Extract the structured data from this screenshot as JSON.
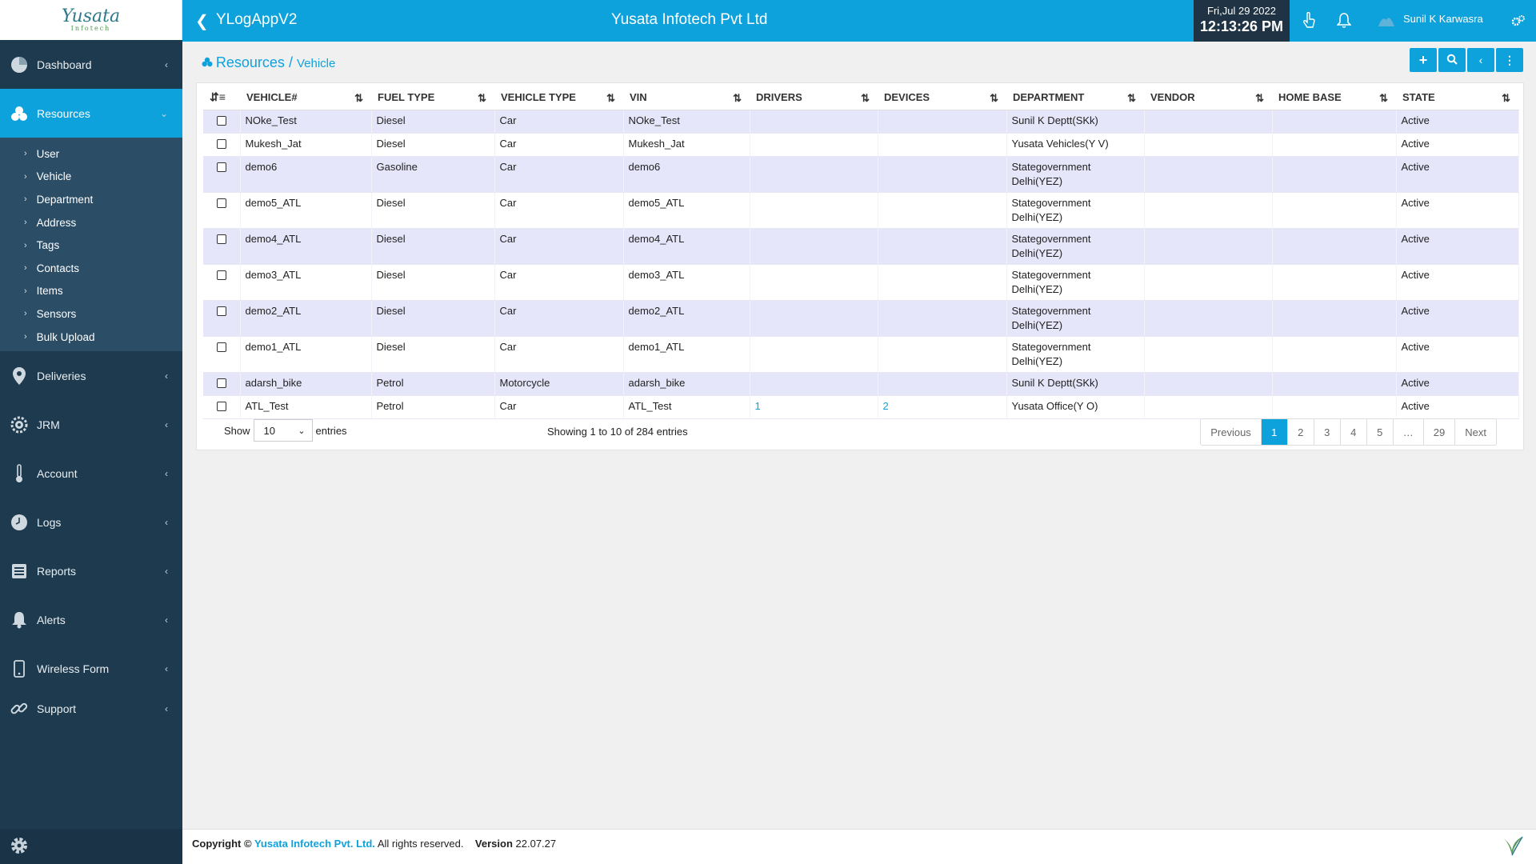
{
  "logo": {
    "text": "Yusata",
    "sub": "Infotech"
  },
  "header": {
    "app_title": "YLogAppV2",
    "company": "Yusata Infotech Pvt Ltd",
    "date": "Fri,Jul 29 2022",
    "time": "12:13:26 PM",
    "user": "Sunil K Karwasra"
  },
  "sidebar": {
    "items": [
      {
        "label": "Dashboard",
        "icon": "dashboard-icon"
      },
      {
        "label": "Resources",
        "icon": "resources-icon",
        "active": true
      },
      {
        "label": "Deliveries",
        "icon": "location-pin-icon"
      },
      {
        "label": "JRM",
        "icon": "gear-cog-icon"
      },
      {
        "label": "Account",
        "icon": "thermometer-icon"
      },
      {
        "label": "Logs",
        "icon": "clock-icon"
      },
      {
        "label": "Reports",
        "icon": "report-icon"
      },
      {
        "label": "Alerts",
        "icon": "bell-icon"
      },
      {
        "label": "Wireless Form",
        "icon": "mobile-icon"
      },
      {
        "label": "Support",
        "icon": "link-icon"
      }
    ],
    "submenu": [
      "User",
      "Vehicle",
      "Department",
      "Address",
      "Tags",
      "Contacts",
      "Items",
      "Sensors",
      "Bulk Upload"
    ]
  },
  "breadcrumb": {
    "main": "Resources",
    "sep": " / ",
    "sub": "Vehicle"
  },
  "table": {
    "columns": [
      "VEHICLE#",
      "FUEL TYPE",
      "VEHICLE TYPE",
      "VIN",
      "DRIVERS",
      "DEVICES",
      "DEPARTMENT",
      "VENDOR",
      "HOME BASE",
      "STATE"
    ],
    "rows": [
      [
        "NOke_Test",
        "Diesel",
        "Car",
        "NOke_Test",
        "",
        "",
        "Sunil K Deptt(SKk)",
        "",
        "",
        "Active"
      ],
      [
        "Mukesh_Jat",
        "Diesel",
        "Car",
        "Mukesh_Jat",
        "",
        "",
        "Yusata Vehicles(Y V)",
        "",
        "",
        "Active"
      ],
      [
        "demo6",
        "Gasoline",
        "Car",
        "demo6",
        "",
        "",
        "Stategovernment Delhi(YEZ)",
        "",
        "",
        "Active"
      ],
      [
        "demo5_ATL",
        "Diesel",
        "Car",
        "demo5_ATL",
        "",
        "",
        "Stategovernment Delhi(YEZ)",
        "",
        "",
        "Active"
      ],
      [
        "demo4_ATL",
        "Diesel",
        "Car",
        "demo4_ATL",
        "",
        "",
        "Stategovernment Delhi(YEZ)",
        "",
        "",
        "Active"
      ],
      [
        "demo3_ATL",
        "Diesel",
        "Car",
        "demo3_ATL",
        "",
        "",
        "Stategovernment Delhi(YEZ)",
        "",
        "",
        "Active"
      ],
      [
        "demo2_ATL",
        "Diesel",
        "Car",
        "demo2_ATL",
        "",
        "",
        "Stategovernment Delhi(YEZ)",
        "",
        "",
        "Active"
      ],
      [
        "demo1_ATL",
        "Diesel",
        "Car",
        "demo1_ATL",
        "",
        "",
        "Stategovernment Delhi(YEZ)",
        "",
        "",
        "Active"
      ],
      [
        "adarsh_bike",
        "Petrol",
        "Motorcycle",
        "adarsh_bike",
        "",
        "",
        "Sunil K Deptt(SKk)",
        "",
        "",
        "Active"
      ],
      [
        "ATL_Test",
        "Petrol",
        "Car",
        "ATL_Test",
        "1",
        "2",
        "Yusata Office(Y O)",
        "",
        "",
        "Active"
      ]
    ]
  },
  "paging": {
    "show_label": "Show",
    "entries_label": "entries",
    "page_size": "10",
    "info": "Showing 1 to 10 of 284 entries",
    "pages": [
      "Previous",
      "1",
      "2",
      "3",
      "4",
      "5",
      "…",
      "29",
      "Next"
    ],
    "active_page": "1"
  },
  "footer": {
    "copyright": "Copyright © ",
    "brand": "Yusata Infotech Pvt. Ltd.",
    "rights": " All rights reserved.",
    "version_label": "Version",
    "version": "22.07.27"
  },
  "colors": {
    "primary": "#0ea2dd",
    "sidebar": "#1e3a4f",
    "row_alt": "#e6e6fa"
  }
}
